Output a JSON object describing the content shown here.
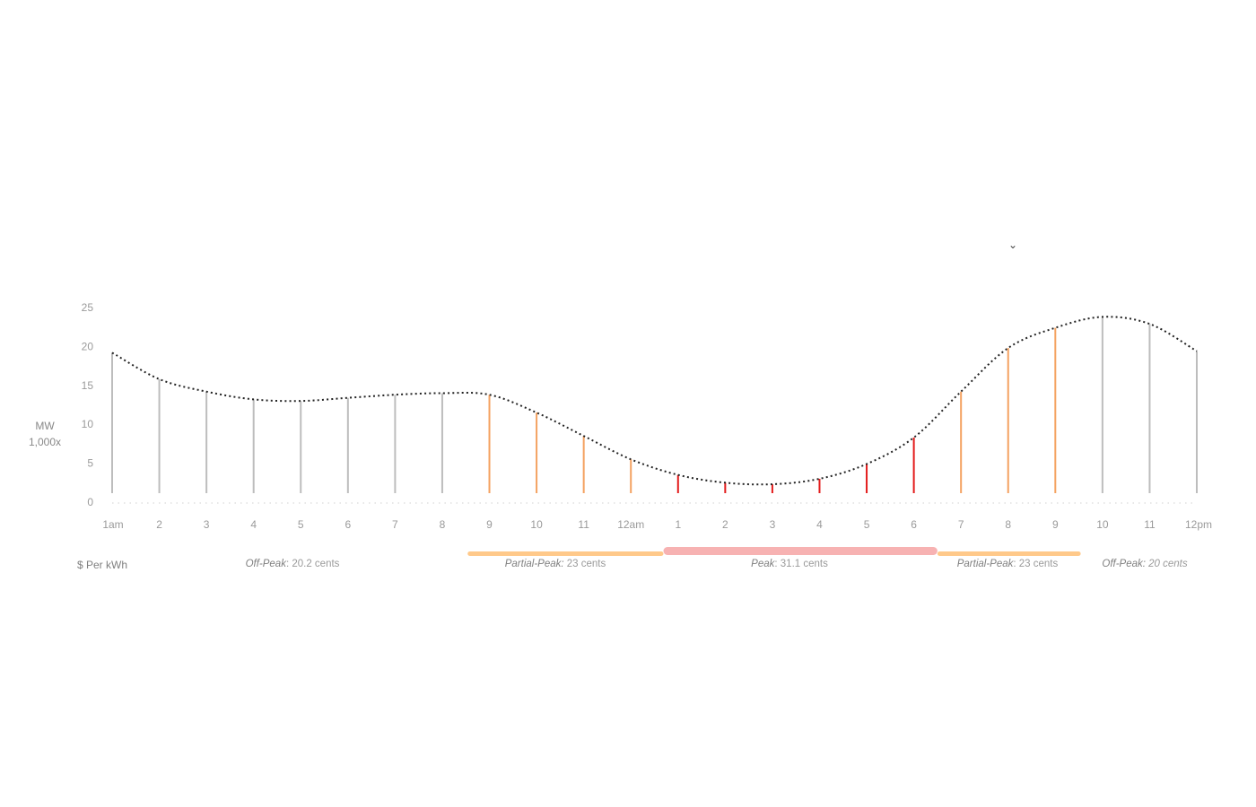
{
  "collapse_icon": "chevron-down-icon",
  "unit_label": "$ Per  kWh",
  "y_axis": {
    "line1": "MW",
    "line2": "1,000x"
  },
  "colors": {
    "offpeak": "#bdbdbd",
    "partial": "#f4a261",
    "peak": "#e31b1b",
    "partial_bar": "#ffc98a",
    "peak_bar": "#f7b2b2",
    "curve": "#222222"
  },
  "rate_periods": [
    {
      "name": "Off-Peak",
      "sep": ":",
      "value": " 20.2 cents",
      "value_italic": false
    },
    {
      "name": "Partial-Peak:",
      "sep": "",
      "value": " 23 cents",
      "value_italic": false
    },
    {
      "name": "Peak",
      "sep": ":",
      "value": " 31.1 cents",
      "value_italic": false
    },
    {
      "name": "Partial-Peak",
      "sep": ":",
      "value": " 23 cents",
      "value_italic": false
    },
    {
      "name": "Off-Peak:",
      "sep": "",
      "value": " 20 cents",
      "value_italic": true
    }
  ],
  "chart_data": {
    "type": "line",
    "ylabel": "MW 1,000x",
    "ylim": [
      0,
      25
    ],
    "yticks": [
      0,
      5,
      10,
      15,
      20,
      25
    ],
    "grid": false,
    "categories": [
      "1am",
      "2",
      "3",
      "4",
      "5",
      "6",
      "7",
      "8",
      "9",
      "10",
      "11",
      "12am",
      "1",
      "2",
      "3",
      "4",
      "5",
      "6",
      "7",
      "8",
      "9",
      "10",
      "11",
      "12pm"
    ],
    "values": [
      19.2,
      15.8,
      14.2,
      13.2,
      13.0,
      13.4,
      13.8,
      14.0,
      13.8,
      11.5,
      8.5,
      5.5,
      3.5,
      2.5,
      2.3,
      3.0,
      4.9,
      8.3,
      14.2,
      19.8,
      22.4,
      23.8,
      22.9,
      19.4
    ],
    "periods": [
      "off-peak",
      "off-peak",
      "off-peak",
      "off-peak",
      "off-peak",
      "off-peak",
      "off-peak",
      "off-peak",
      "partial-peak",
      "partial-peak",
      "partial-peak",
      "partial-peak",
      "peak",
      "peak",
      "peak",
      "peak",
      "peak",
      "peak",
      "partial-peak",
      "partial-peak",
      "partial-peak",
      "off-peak",
      "off-peak",
      "off-peak"
    ]
  }
}
